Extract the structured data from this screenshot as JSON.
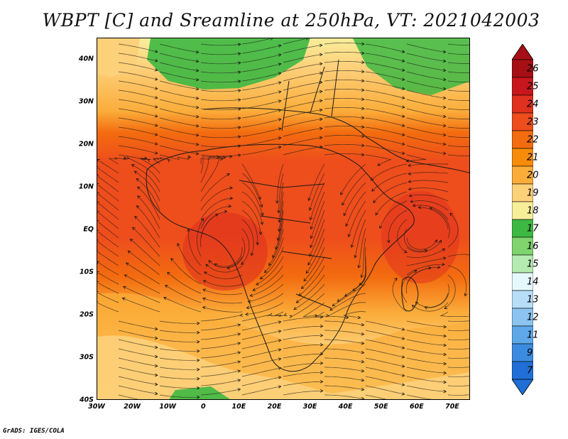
{
  "title": "WBPT [C] and Sreamline at 250hPa, VT: 2021042003",
  "credit": "GrADS: IGES/COLA",
  "map": {
    "lat_labels": [
      "40N",
      "30N",
      "20N",
      "10N",
      "EQ",
      "10S",
      "20S",
      "30S",
      "40S"
    ],
    "lon_labels": [
      "30W",
      "20W",
      "10W",
      "0",
      "10E",
      "20E",
      "30E",
      "40E",
      "50E",
      "60E",
      "70E"
    ],
    "lat_range": [
      -40,
      45
    ],
    "lon_range": [
      -30,
      75
    ]
  },
  "colorbar": {
    "labels": [
      "26",
      "25",
      "24",
      "23",
      "22",
      "21",
      "20",
      "19",
      "18",
      "17",
      "16",
      "15",
      "14",
      "13",
      "12",
      "11",
      "9",
      "7"
    ],
    "colors": [
      "#a50f15",
      "#c8171c",
      "#e0301e",
      "#ee4d1c",
      "#f36c0f",
      "#f78c0a",
      "#fbad3a",
      "#fdd07a",
      "#f8ee9a",
      "#3db843",
      "#7fd46e",
      "#b5eab0",
      "#e6f8ff",
      "#b7ddf8",
      "#8bc4f0",
      "#5ea8ea",
      "#3b8be0",
      "#1f6fd6"
    ]
  }
}
